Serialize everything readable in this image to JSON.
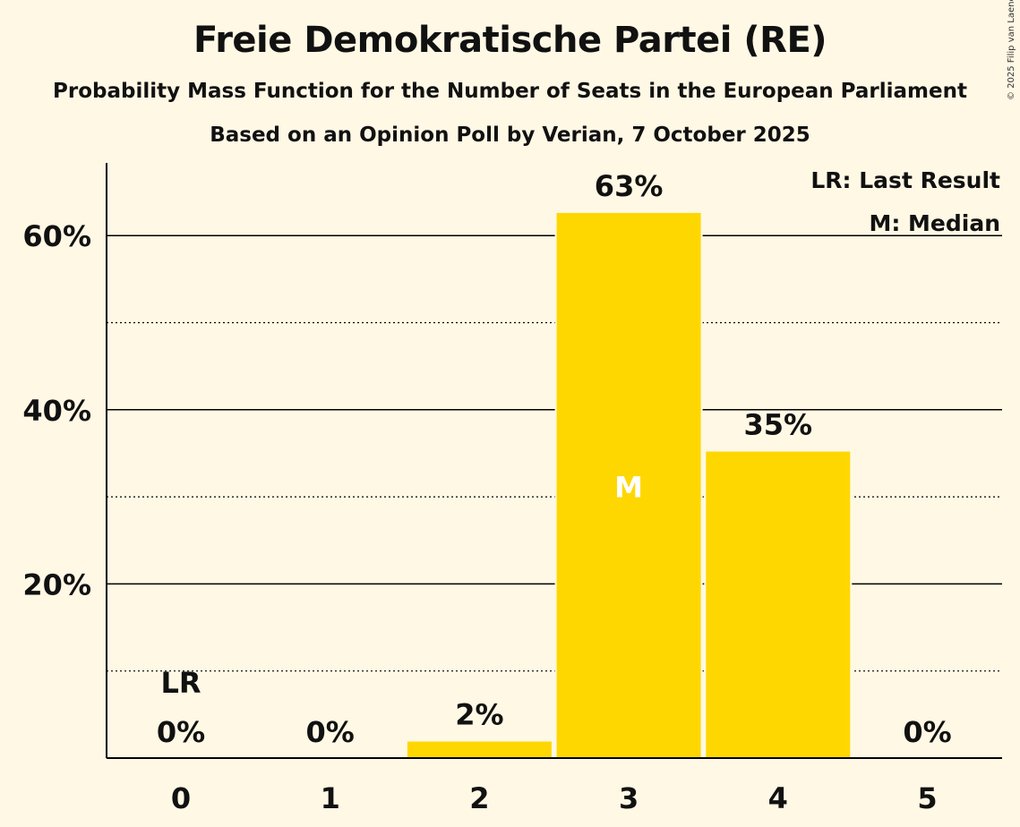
{
  "chart_data": {
    "type": "bar",
    "title": "Freie Demokratische Partei (RE)",
    "subtitle": "Probability Mass Function for the Number of Seats in the European Parliament",
    "subtitle2": "Based on an Opinion Poll by Verian, 7 October 2025",
    "categories": [
      "0",
      "1",
      "2",
      "3",
      "4",
      "5"
    ],
    "values": [
      0,
      0,
      2,
      62.7,
      35.3,
      0
    ],
    "value_labels": [
      "0%",
      "0%",
      "2%",
      "63%",
      "35%",
      "0%"
    ],
    "ylim": [
      0,
      68
    ],
    "major_ticks": [
      20,
      40,
      60
    ],
    "minor_ticks": [
      10,
      30,
      50
    ],
    "tick_labels": [
      "20%",
      "40%",
      "60%"
    ],
    "last_result_index": 0,
    "last_result_label": "LR",
    "median_index": 3,
    "median_label": "M",
    "legend": [
      "LR: Last Result",
      "M: Median"
    ],
    "legend_position": "top-right",
    "bar_color": "#ffd700",
    "copyright": "© 2025 Filip van Laenen"
  }
}
